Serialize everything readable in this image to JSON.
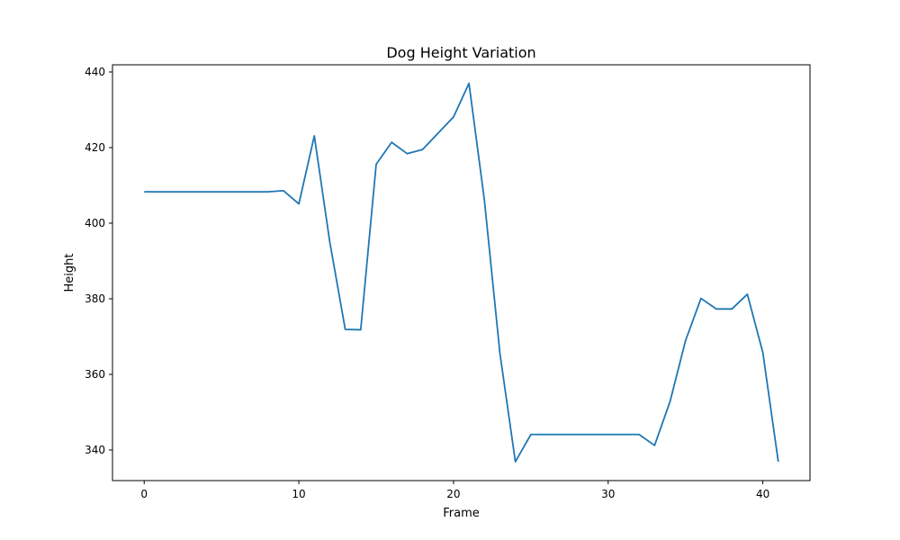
{
  "chart_data": {
    "type": "line",
    "title": "Dog Height Variation",
    "xlabel": "Frame",
    "ylabel": "Height",
    "xlim": [
      -2.05,
      43.05
    ],
    "ylim": [
      331.9,
      441.9
    ],
    "xticks": [
      0,
      10,
      20,
      30,
      40
    ],
    "yticks": [
      340,
      360,
      380,
      400,
      420,
      440
    ],
    "grid": false,
    "series": [
      {
        "color": "#1f77b4",
        "x": [
          0,
          1,
          2,
          3,
          4,
          5,
          6,
          7,
          8,
          9,
          10,
          11,
          12,
          13,
          14,
          15,
          16,
          17,
          18,
          19,
          20,
          21,
          22,
          23,
          24,
          25,
          26,
          27,
          28,
          29,
          30,
          31,
          32,
          33,
          34,
          35,
          36,
          37,
          38,
          39,
          40,
          41
        ],
        "y": [
          408.3,
          408.3,
          408.3,
          408.3,
          408.3,
          408.3,
          408.3,
          408.3,
          408.3,
          408.6,
          405.1,
          423.1,
          395.0,
          371.9,
          371.8,
          415.6,
          421.4,
          418.4,
          419.5,
          423.8,
          428.1,
          437.0,
          406.0,
          365.6,
          336.9,
          344.1,
          344.1,
          344.1,
          344.1,
          344.1,
          344.1,
          344.1,
          344.1,
          341.2,
          352.8,
          368.9,
          380.1,
          377.3,
          377.3,
          381.2,
          365.8,
          336.9
        ]
      }
    ]
  }
}
